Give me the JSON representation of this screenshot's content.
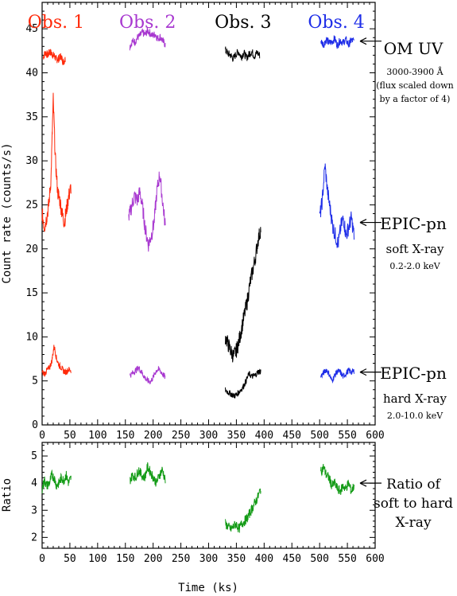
{
  "chart_data": {
    "type": "line",
    "xlabel": "Time (ks)",
    "x_ticks": [
      0,
      50,
      100,
      150,
      200,
      250,
      300,
      350,
      400,
      450,
      500,
      550,
      600
    ],
    "top": {
      "ylabel": "Count rate (counts/s)",
      "ylim": [
        0,
        48
      ],
      "y_ticks": [
        0,
        5,
        10,
        15,
        20,
        25,
        30,
        35,
        40,
        45
      ],
      "observations": [
        {
          "label": "Obs. 1",
          "color": "#ff2a0a"
        },
        {
          "label": "Obs. 2",
          "color": "#a838d0"
        },
        {
          "label": "Obs. 3",
          "color": "#000000"
        },
        {
          "label": "Obs. 4",
          "color": "#1f2ee8"
        }
      ],
      "bands": [
        {
          "name": "OM UV",
          "lines": [
            "3000-3900 Å",
            "(flux scaled down",
            "by a factor of 4)"
          ],
          "segments": [
            {
              "obs": 0,
              "x0": 2,
              "x1": 42,
              "y": [
                41.8,
                42.3,
                42.0,
                42.4,
                42.1,
                41.9,
                41.5,
                41.6,
                41.9,
                41.2,
                41.6
              ]
            },
            {
              "obs": 1,
              "x0": 158,
              "x1": 222,
              "y": [
                43.0,
                43.6,
                43.5,
                44.0,
                44.2,
                44.6,
                44.3,
                44.8,
                44.5,
                44.2,
                44.4,
                43.9,
                44.1,
                43.6,
                43.2
              ]
            },
            {
              "obs": 2,
              "x0": 330,
              "x1": 392,
              "y": [
                42.6,
                42.2,
                42.0,
                41.6,
                42.1,
                42.4,
                41.8,
                42.3,
                41.7,
                42.1,
                42.4,
                41.9,
                42.3,
                42.0
              ]
            },
            {
              "obs": 3,
              "x0": 502,
              "x1": 562,
              "y": [
                43.6,
                43.2,
                43.8,
                43.4,
                43.5,
                43.9,
                43.1,
                43.7,
                43.4,
                43.8,
                43.2,
                43.7,
                43.6
              ]
            }
          ]
        },
        {
          "name": "EPIC-pn",
          "lines": [
            "soft X-ray",
            "0.2-2.0 keV"
          ],
          "segments": [
            {
              "obs": 0,
              "x0": 0,
              "x1": 52,
              "y": [
                24.0,
                22.5,
                23.5,
                25.0,
                28.0,
                37.0,
                30.0,
                26.5,
                25.5,
                24.0,
                23.0,
                24.5,
                26.0,
                27.0
              ]
            },
            {
              "obs": 1,
              "x0": 156,
              "x1": 222,
              "y": [
                23.5,
                24.8,
                26.0,
                25.5,
                26.5,
                24.5,
                22.0,
                20.5,
                21.5,
                23.0,
                26.5,
                28.5,
                25.5,
                22.5
              ]
            },
            {
              "obs": 2,
              "x0": 330,
              "x1": 394,
              "y": [
                10.0,
                9.2,
                8.4,
                7.8,
                8.4,
                9.5,
                11.0,
                12.5,
                14.0,
                16.0,
                17.5,
                19.0,
                21.0,
                22.3
              ]
            },
            {
              "obs": 3,
              "x0": 500,
              "x1": 562,
              "y": [
                23.5,
                25.5,
                29.5,
                26.5,
                24.5,
                22.5,
                21.5,
                20.5,
                22.5,
                23.5,
                21.5,
                22.5,
                23.5,
                21.5
              ]
            }
          ]
        },
        {
          "name": "EPIC-pn",
          "lines": [
            "hard X-ray",
            "2.0-10.0 keV"
          ],
          "segments": [
            {
              "obs": 0,
              "x0": 0,
              "x1": 52,
              "y": [
                6.0,
                5.8,
                6.2,
                6.5,
                7.2,
                9.0,
                7.5,
                6.8,
                6.5,
                6.1,
                6.0,
                6.3,
                6.2
              ]
            },
            {
              "obs": 1,
              "x0": 158,
              "x1": 222,
              "y": [
                5.6,
                5.9,
                6.2,
                6.5,
                6.0,
                5.4,
                5.0,
                4.9,
                5.5,
                6.2,
                6.3,
                5.8,
                5.4
              ]
            },
            {
              "obs": 2,
              "x0": 330,
              "x1": 394,
              "y": [
                4.0,
                3.7,
                3.5,
                3.3,
                3.5,
                3.9,
                4.3,
                5.0,
                5.8,
                5.5,
                5.6,
                6.0,
                6.1
              ]
            },
            {
              "obs": 3,
              "x0": 502,
              "x1": 562,
              "y": [
                5.5,
                5.9,
                6.3,
                5.8,
                5.0,
                5.6,
                6.1,
                6.0,
                5.5,
                5.8,
                6.2,
                6.0,
                6.1
              ]
            }
          ]
        }
      ]
    },
    "bottom": {
      "ylabel": "Ratio",
      "ylim": [
        1.6,
        5.5
      ],
      "y_ticks": [
        2,
        3,
        4,
        5
      ],
      "color": "#139b16",
      "annotation": [
        "Ratio of",
        "soft to hard",
        "X-ray"
      ],
      "segments": [
        {
          "x0": 0,
          "x1": 52,
          "y": [
            3.8,
            4.1,
            3.9,
            4.0,
            4.3,
            4.2,
            3.9,
            4.0,
            4.2,
            4.1,
            4.3,
            4.0,
            4.2
          ]
        },
        {
          "x0": 158,
          "x1": 222,
          "y": [
            4.1,
            4.3,
            4.2,
            4.5,
            4.3,
            4.2,
            4.6,
            4.4,
            4.2,
            4.0,
            4.3,
            4.5,
            4.1
          ]
        },
        {
          "x0": 330,
          "x1": 394,
          "y": [
            2.5,
            2.4,
            2.3,
            2.4,
            2.5,
            2.3,
            2.5,
            2.6,
            2.7,
            2.9,
            3.1,
            3.3,
            3.5,
            3.8
          ]
        },
        {
          "x0": 502,
          "x1": 562,
          "y": [
            4.4,
            4.6,
            4.3,
            4.2,
            3.9,
            4.0,
            3.8,
            3.7,
            3.9,
            3.8,
            4.0,
            3.7,
            3.9
          ]
        }
      ]
    }
  }
}
